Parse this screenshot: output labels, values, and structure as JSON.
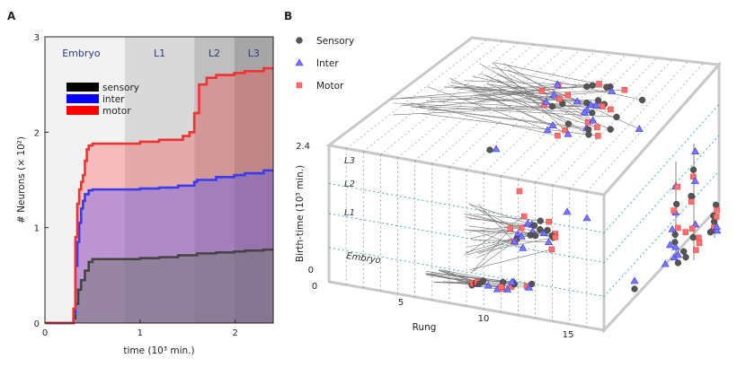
{
  "panels": {
    "a": "A",
    "b": "B"
  },
  "chart_data": [
    {
      "type": "area",
      "title": "",
      "xlabel": "time (10³ min.)",
      "ylabel": "# Neurons (× 10²)",
      "xlim": [
        0,
        2.4
      ],
      "ylim": [
        0,
        3
      ],
      "xticks": [
        "0",
        "1",
        "2"
      ],
      "yticks": [
        "0",
        "1",
        "2",
        "3"
      ],
      "stages": [
        {
          "name": "Embryo",
          "start": 0.0,
          "end": 0.84
        },
        {
          "name": "L1",
          "start": 0.84,
          "end": 1.57
        },
        {
          "name": "L2",
          "start": 1.57,
          "end": 1.99
        },
        {
          "name": "L3",
          "start": 1.99,
          "end": 2.4
        }
      ],
      "legend": [
        "sensory",
        "inter",
        "motor"
      ],
      "legend_colors": [
        "#000000",
        "#0000ff",
        "#ff0000"
      ],
      "series": [
        {
          "name": "sensory (cumulative)",
          "color": "#444444",
          "x": [
            0,
            0.28,
            0.3,
            0.32,
            0.35,
            0.38,
            0.42,
            0.46,
            0.5,
            0.84,
            1.0,
            1.2,
            1.4,
            1.57,
            1.6,
            1.8,
            1.99,
            2.1,
            2.3,
            2.4
          ],
          "values": [
            0,
            0,
            0.05,
            0.2,
            0.35,
            0.45,
            0.55,
            0.64,
            0.67,
            0.67,
            0.68,
            0.69,
            0.71,
            0.71,
            0.73,
            0.74,
            0.75,
            0.76,
            0.77,
            0.77
          ]
        },
        {
          "name": "inter (cumulative)",
          "color": "#3a3aee",
          "x": [
            0,
            0.28,
            0.3,
            0.32,
            0.34,
            0.36,
            0.38,
            0.4,
            0.42,
            0.46,
            0.5,
            0.84,
            1.0,
            1.2,
            1.4,
            1.57,
            1.6,
            1.8,
            1.99,
            2.1,
            2.3,
            2.4
          ],
          "values": [
            0,
            0,
            0.1,
            0.6,
            0.85,
            1.05,
            1.2,
            1.28,
            1.35,
            1.39,
            1.4,
            1.4,
            1.41,
            1.42,
            1.44,
            1.48,
            1.5,
            1.53,
            1.55,
            1.57,
            1.6,
            1.6
          ]
        },
        {
          "name": "motor (cumulative)",
          "color": "#ee3333",
          "x": [
            0,
            0.28,
            0.3,
            0.32,
            0.34,
            0.36,
            0.38,
            0.4,
            0.42,
            0.44,
            0.46,
            0.5,
            0.84,
            1.0,
            1.2,
            1.45,
            1.52,
            1.57,
            1.62,
            1.7,
            1.8,
            1.99,
            2.1,
            2.3,
            2.4
          ],
          "values": [
            0,
            0,
            0.15,
            0.9,
            1.25,
            1.4,
            1.48,
            1.55,
            1.7,
            1.82,
            1.86,
            1.88,
            1.88,
            1.9,
            1.92,
            1.96,
            2.0,
            2.2,
            2.5,
            2.57,
            2.6,
            2.62,
            2.64,
            2.67,
            2.67
          ]
        }
      ],
      "fills": {
        "stage_shades": [
          "#f2f2f2",
          "#d9d9d9",
          "#bfbfbf",
          "#a6a6a6"
        ]
      }
    },
    {
      "type": "scatter",
      "title": "",
      "xlabel": "Rung",
      "ylabel": "Birth-time (10³ min.)",
      "xticks": [
        "0",
        "5",
        "10",
        "15"
      ],
      "zticks": [
        "0",
        "2.4"
      ],
      "stage_labels": [
        "L3",
        "L2",
        "L1",
        "Embryo"
      ],
      "legend": [
        "Sensory",
        "Inter",
        "Motor"
      ],
      "legend_colors": [
        "#555555",
        "#3333ee",
        "#ee3333"
      ],
      "markers": [
        "circle",
        "triangle",
        "square"
      ]
    }
  ]
}
